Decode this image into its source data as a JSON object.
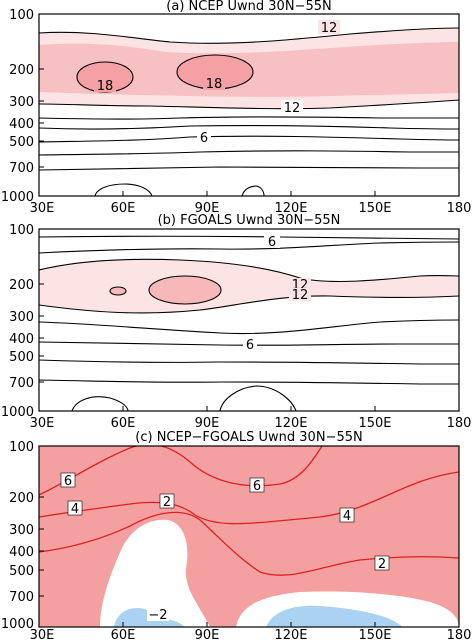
{
  "figure": {
    "panels": [
      {
        "id": "a",
        "title": "(a) NCEP Uwnd 30N−55N",
        "contour_levels": [
          6,
          12,
          18
        ],
        "fill_colors": {
          "shade_12": "#fde4e4",
          "shade_18": "#f7c0c2"
        }
      },
      {
        "id": "b",
        "title": "(b) FGOALS Uwnd 30N−55N",
        "contour_levels": [
          6,
          12
        ],
        "fill_colors": {
          "shade_12": "#fde4e4",
          "shade_18": "#f7c0c2"
        }
      },
      {
        "id": "c",
        "title": "(c) NCEP−FGOALS Uwnd 30N−55N",
        "contour_levels": [
          -2,
          2,
          4,
          6
        ],
        "fill_colors": {
          "positive": "#f4a0a0",
          "negative": "#a9d3f0",
          "neutral": "#ffffff",
          "line": "#e02020"
        }
      }
    ],
    "x_ticks": [
      "30E",
      "60E",
      "90E",
      "120E",
      "150E",
      "180"
    ],
    "y_ticks": [
      "100",
      "200",
      "300",
      "400",
      "500",
      "700",
      "1000"
    ]
  },
  "chart_data": [
    {
      "type": "heatmap",
      "title": "(a) NCEP Uwnd 30N−55N",
      "x_ticks": [
        "30E",
        "60E",
        "90E",
        "120E",
        "150E",
        "180"
      ],
      "y_ticks": [
        "100",
        "200",
        "300",
        "400",
        "500",
        "700",
        "1000"
      ],
      "xlim": [
        30,
        180
      ],
      "ylim": [
        1000,
        100
      ],
      "y_scale": "log",
      "contour_labels": [
        "12",
        "18",
        "18",
        "12",
        "6"
      ]
    },
    {
      "type": "heatmap",
      "title": "(b) FGOALS Uwnd 30N−55N",
      "x_ticks": [
        "30E",
        "60E",
        "90E",
        "120E",
        "150E",
        "180"
      ],
      "y_ticks": [
        "100",
        "200",
        "300",
        "400",
        "500",
        "700",
        "1000"
      ],
      "xlim": [
        30,
        180
      ],
      "ylim": [
        1000,
        100
      ],
      "y_scale": "log",
      "contour_labels": [
        "6",
        "12",
        "12",
        "6"
      ]
    },
    {
      "type": "heatmap",
      "title": "(c) NCEP−FGOALS Uwnd 30N−55N",
      "x_ticks": [
        "30E",
        "60E",
        "90E",
        "120E",
        "150E",
        "180"
      ],
      "y_ticks": [
        "100",
        "200",
        "300",
        "400",
        "500",
        "700",
        "1000"
      ],
      "xlim": [
        30,
        180
      ],
      "ylim": [
        1000,
        100
      ],
      "y_scale": "log",
      "contour_labels": [
        "6",
        "6",
        "4",
        "4",
        "2",
        "2",
        "−2"
      ]
    }
  ]
}
